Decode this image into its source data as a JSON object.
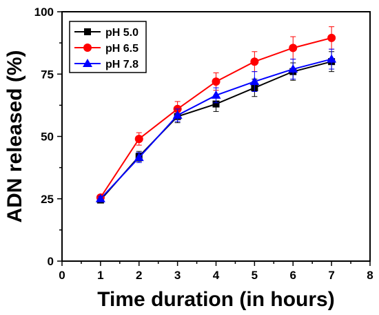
{
  "chart_data": {
    "type": "line",
    "title": "",
    "xlabel": "Time duration (in hours)",
    "ylabel": "ADN released (%)",
    "xlim": [
      0,
      8
    ],
    "ylim": [
      0,
      100
    ],
    "x_ticks": [
      "0",
      "1",
      "2",
      "3",
      "4",
      "5",
      "6",
      "7",
      "8"
    ],
    "y_ticks": [
      "0",
      "25",
      "50",
      "75",
      "100"
    ],
    "grid": false,
    "legend_position": "top-left",
    "series": [
      {
        "name": "pH 5.0",
        "color": "#000000",
        "marker": "square",
        "x": [
          1,
          2,
          3,
          4,
          5,
          6,
          7
        ],
        "y": [
          24.5,
          42,
          58,
          63,
          69.5,
          76,
          80
        ],
        "err": [
          1.0,
          2.0,
          2.5,
          3.0,
          3.5,
          3.5,
          4.0
        ]
      },
      {
        "name": "pH 6.5",
        "color": "#ff0000",
        "marker": "circle",
        "x": [
          1,
          2,
          3,
          4,
          5,
          6,
          7
        ],
        "y": [
          25.5,
          49,
          61,
          72,
          80,
          85.5,
          89.5
        ],
        "err": [
          1.0,
          2.5,
          3.0,
          3.5,
          4.0,
          4.5,
          4.5
        ]
      },
      {
        "name": "pH 7.8",
        "color": "#0000ff",
        "marker": "triangle",
        "x": [
          1,
          2,
          3,
          4,
          5,
          6,
          7
        ],
        "y": [
          25,
          41.5,
          58.5,
          66.5,
          72,
          77,
          81
        ],
        "err": [
          1.0,
          2.0,
          2.5,
          3.0,
          4.0,
          4.0,
          4.0
        ]
      }
    ]
  }
}
